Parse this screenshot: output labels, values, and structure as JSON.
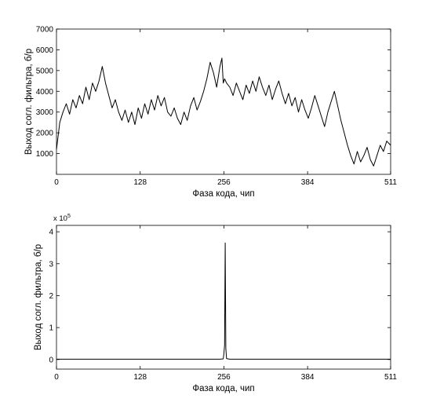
{
  "chart_data": [
    {
      "type": "line",
      "xlabel": "Фаза кода, чип",
      "ylabel": "Выход согл. фильтра, б/р",
      "xlim": [
        0,
        511
      ],
      "ylim": [
        0,
        7000
      ],
      "xticks": [
        0,
        128,
        256,
        384,
        511
      ],
      "yticks": [
        1000,
        2000,
        3000,
        4000,
        5000,
        6000,
        7000
      ],
      "color": "#000000",
      "grid": false,
      "series": [
        {
          "x": [
            0,
            5,
            10,
            15,
            20,
            25,
            30,
            35,
            40,
            45,
            50,
            55,
            60,
            65,
            70,
            75,
            80,
            85,
            90,
            95,
            100,
            105,
            110,
            115,
            120,
            125,
            130,
            135,
            140,
            145,
            150,
            155,
            160,
            165,
            170,
            175,
            180,
            185,
            190,
            195,
            200,
            205,
            210,
            215,
            220,
            225,
            230,
            235,
            240,
            245,
            250,
            253,
            255,
            257,
            260,
            265,
            270,
            275,
            280,
            285,
            290,
            295,
            300,
            305,
            310,
            315,
            320,
            325,
            330,
            335,
            340,
            345,
            350,
            355,
            360,
            365,
            370,
            375,
            380,
            385,
            390,
            395,
            400,
            405,
            410,
            415,
            420,
            425,
            430,
            435,
            440,
            445,
            450,
            455,
            460,
            465,
            470,
            475,
            480,
            485,
            490,
            495,
            500,
            505,
            511
          ],
          "y": [
            1200,
            2500,
            3000,
            3400,
            2900,
            3600,
            3200,
            3800,
            3400,
            4200,
            3600,
            4400,
            4000,
            4500,
            5200,
            4400,
            3800,
            3200,
            3600,
            3000,
            2600,
            3100,
            2500,
            3000,
            2400,
            3200,
            2700,
            3400,
            2900,
            3600,
            3100,
            3800,
            3300,
            3700,
            3000,
            2800,
            3200,
            2700,
            2400,
            3000,
            2600,
            3300,
            3700,
            3100,
            3500,
            4000,
            4600,
            5400,
            4900,
            4200,
            5200,
            5600,
            4400,
            4600,
            4400,
            4200,
            3800,
            4400,
            4000,
            3600,
            4300,
            3900,
            4500,
            4000,
            4700,
            4200,
            3800,
            4300,
            3600,
            4100,
            4500,
            3900,
            3400,
            3900,
            3300,
            3700,
            3000,
            3600,
            3100,
            2700,
            3200,
            3800,
            3300,
            2800,
            2300,
            3000,
            3500,
            4000,
            3300,
            2600,
            2000,
            1400,
            900,
            500,
            1100,
            600,
            900,
            1300,
            700,
            400,
            900,
            1400,
            1100,
            1600,
            1400
          ]
        }
      ]
    },
    {
      "type": "line",
      "xlabel": "Фаза кода, чип",
      "ylabel": "Выход согл. фильтра, б/р",
      "y_multiplier": "x 10",
      "y_exponent": "5",
      "xlim": [
        0,
        511
      ],
      "ylim": [
        -0.3,
        4.2
      ],
      "xticks": [
        0,
        128,
        256,
        384,
        511
      ],
      "yticks": [
        0,
        1,
        2,
        3,
        4
      ],
      "color": "#000000",
      "grid": false,
      "series": [
        {
          "x": [
            0,
            50,
            100,
            150,
            200,
            250,
            255,
            256,
            257,
            258,
            259,
            260,
            265,
            300,
            350,
            400,
            450,
            511
          ],
          "y": [
            0.01,
            0.01,
            0.01,
            0.01,
            0.01,
            0.01,
            0.02,
            0.18,
            0.45,
            3.65,
            0.35,
            0.03,
            0.01,
            0.01,
            0.01,
            0.01,
            0.01,
            0.01
          ]
        }
      ]
    }
  ]
}
